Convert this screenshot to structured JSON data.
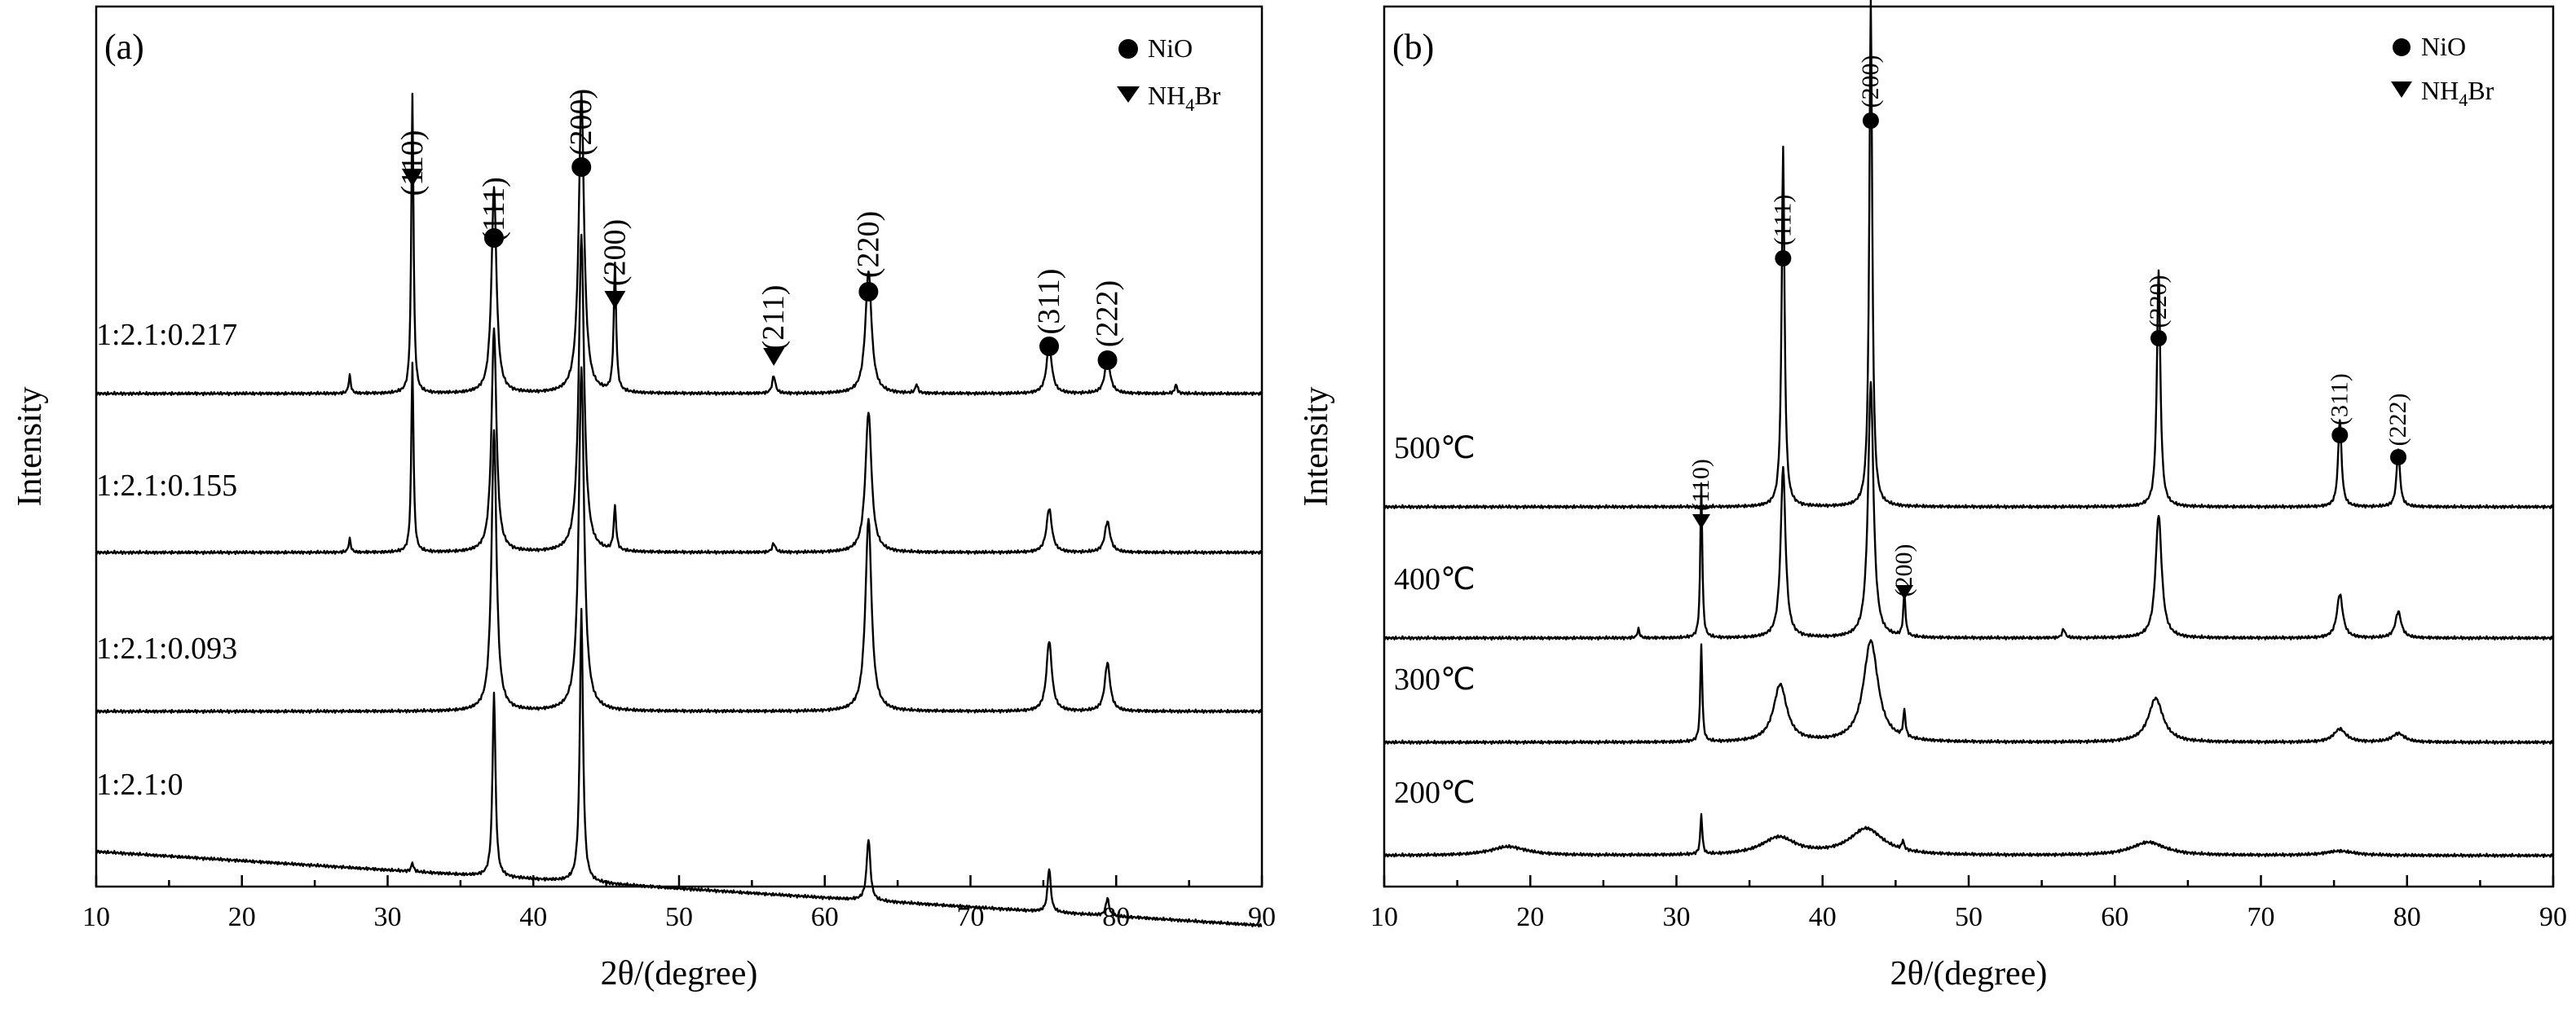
{
  "chart_data": [
    {
      "type": "line",
      "panel": "(a)",
      "xlabel": "2θ/(degree)",
      "ylabel": "Intensity",
      "xlim": [
        10,
        90
      ],
      "xticks": [
        10,
        20,
        30,
        40,
        50,
        60,
        70,
        80,
        90
      ],
      "legend": [
        {
          "marker": "circle",
          "label": "NiO"
        },
        {
          "marker": "triangle",
          "label": "NH",
          "sub": "4",
          "suffix": "Br"
        }
      ],
      "legend_position": "top-right",
      "series": [
        {
          "name": "1:2.1:0.217",
          "baseline": 0.17,
          "slope": 0.0,
          "peaks": [
            [
              27.4,
              0.04,
              0.09
            ],
            [
              31.7,
              0.68,
              0.09
            ],
            [
              37.3,
              0.47,
              0.2
            ],
            [
              43.3,
              0.68,
              0.22
            ],
            [
              45.6,
              0.29,
              0.1
            ],
            [
              56.5,
              0.04,
              0.13
            ],
            [
              63.0,
              0.28,
              0.25
            ],
            [
              66.3,
              0.02,
              0.1
            ],
            [
              75.4,
              0.11,
              0.22
            ],
            [
              79.4,
              0.08,
              0.22
            ],
            [
              84.1,
              0.02,
              0.1
            ]
          ]
        },
        {
          "name": "1:2.1:0.155",
          "baseline": 0.15,
          "slope": 0.0,
          "peaks": [
            [
              27.4,
              0.03,
              0.09
            ],
            [
              31.7,
              0.43,
              0.09
            ],
            [
              37.3,
              0.51,
              0.2
            ],
            [
              43.3,
              0.72,
              0.22
            ],
            [
              45.6,
              0.1,
              0.1
            ],
            [
              56.5,
              0.02,
              0.13
            ],
            [
              63.0,
              0.32,
              0.25
            ],
            [
              75.4,
              0.1,
              0.22
            ],
            [
              79.4,
              0.07,
              0.22
            ]
          ]
        },
        {
          "name": "1:2.1:0.093",
          "baseline": 0.14,
          "slope": 0.0,
          "peaks": [
            [
              37.3,
              0.64,
              0.2
            ],
            [
              43.3,
              0.78,
              0.22
            ],
            [
              63.0,
              0.44,
              0.25
            ],
            [
              75.4,
              0.16,
              0.22
            ],
            [
              79.4,
              0.11,
              0.22
            ]
          ]
        },
        {
          "name": "1:2.1:0",
          "baseline": 0.22,
          "slope": -0.0021,
          "peaks": [
            [
              31.7,
              0.02,
              0.09
            ],
            [
              37.3,
              0.42,
              0.12
            ],
            [
              43.3,
              0.62,
              0.13
            ],
            [
              63.0,
              0.14,
              0.15
            ],
            [
              75.4,
              0.1,
              0.13
            ],
            [
              79.4,
              0.04,
              0.13
            ]
          ]
        }
      ],
      "annotations": [
        {
          "label": "(110)",
          "phase": "NH4Br",
          "x": 31.7
        },
        {
          "label": "(111)",
          "phase": "NiO",
          "x": 37.3
        },
        {
          "label": "(200)",
          "phase": "NiO",
          "x": 43.3
        },
        {
          "label": "(200)",
          "phase": "NH4Br",
          "x": 45.6
        },
        {
          "label": "(211)",
          "phase": "NH4Br",
          "x": 56.5
        },
        {
          "label": "(220)",
          "phase": "NiO",
          "x": 63.0
        },
        {
          "label": "(311)",
          "phase": "NiO",
          "x": 75.4
        },
        {
          "label": "(222)",
          "phase": "NiO",
          "x": 79.4
        }
      ]
    },
    {
      "type": "line",
      "panel": "(b)",
      "xlabel": "2θ/(degree)",
      "ylabel": "Intensity",
      "xlim": [
        10,
        90
      ],
      "xticks": [
        10,
        20,
        30,
        40,
        50,
        60,
        70,
        80,
        90
      ],
      "legend": [
        {
          "marker": "circle",
          "label": "NiO"
        },
        {
          "marker": "triangle",
          "label": "NH",
          "sub": "4",
          "suffix": "Br"
        }
      ],
      "legend_position": "top-right",
      "series": [
        {
          "name": "500℃",
          "baseline": 0.17,
          "slope": 0.0,
          "peaks": [
            [
              37.3,
              0.82,
              0.12
            ],
            [
              43.3,
              1.15,
              0.12
            ],
            [
              63.0,
              0.54,
              0.14
            ],
            [
              75.4,
              0.2,
              0.14
            ],
            [
              79.4,
              0.13,
              0.14
            ]
          ]
        },
        {
          "name": "400℃",
          "baseline": 0.16,
          "slope": 0.0,
          "peaks": [
            [
              27.4,
              0.02,
              0.09
            ],
            [
              31.7,
              0.35,
              0.08
            ],
            [
              37.3,
              0.39,
              0.2
            ],
            [
              43.3,
              0.58,
              0.22
            ],
            [
              45.6,
              0.1,
              0.09
            ],
            [
              56.5,
              0.02,
              0.12
            ],
            [
              63.0,
              0.28,
              0.25
            ],
            [
              75.4,
              0.1,
              0.24
            ],
            [
              79.4,
              0.06,
              0.24
            ]
          ]
        },
        {
          "name": "300℃",
          "baseline": 0.16,
          "slope": 0.0,
          "peaks": [
            [
              31.7,
              0.22,
              0.08
            ],
            [
              37.1,
              0.13,
              0.55
            ],
            [
              43.3,
              0.23,
              0.6
            ],
            [
              45.6,
              0.06,
              0.09
            ],
            [
              62.8,
              0.1,
              0.6
            ],
            [
              75.4,
              0.03,
              0.5
            ],
            [
              79.4,
              0.02,
              0.5
            ]
          ]
        },
        {
          "name": "200℃",
          "baseline": 0.14,
          "slope": 0.0,
          "peaks": [
            [
              18.5,
              0.02,
              1.5
            ],
            [
              31.7,
              0.09,
              0.08
            ],
            [
              37.0,
              0.04,
              1.4
            ],
            [
              43.0,
              0.06,
              1.4
            ],
            [
              45.5,
              0.02,
              0.09
            ],
            [
              62.3,
              0.03,
              1.4
            ],
            [
              75.4,
              0.01,
              1.2
            ]
          ]
        }
      ],
      "annotations": [
        {
          "label": "(110)",
          "phase": "NH4Br",
          "x": 31.7
        },
        {
          "label": "(111)",
          "phase": "NiO",
          "x": 37.3
        },
        {
          "label": "(200)",
          "phase": "NiO",
          "x": 43.3
        },
        {
          "label": "(200)",
          "phase": "NH4Br",
          "x": 45.6
        },
        {
          "label": "(220)",
          "phase": "NiO",
          "x": 63.0
        },
        {
          "label": "(311)",
          "phase": "NiO",
          "x": 75.4
        },
        {
          "label": "(222)",
          "phase": "NiO",
          "x": 79.4
        }
      ]
    }
  ]
}
